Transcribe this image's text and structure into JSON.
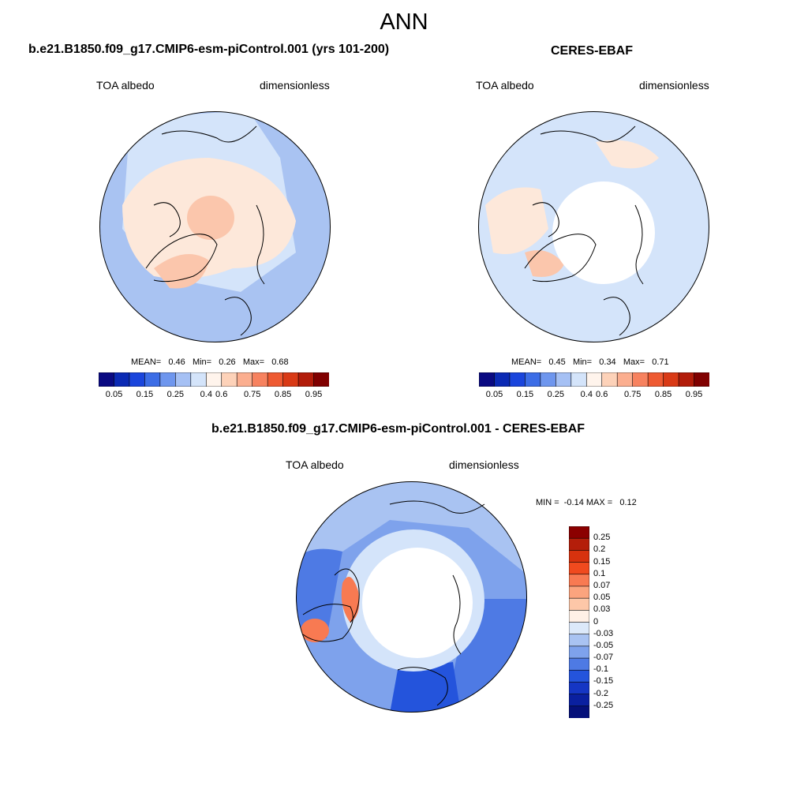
{
  "title": "ANN",
  "panels": [
    {
      "title": "b.e21.B1850.f09_g17.CMIP6-esm-piControl.001 (yrs 101-200)",
      "variable": "TOA albedo",
      "units": "dimensionless",
      "stats": "MEAN=   0.46   Min=   0.26   Max=   0.68"
    },
    {
      "title": "CERES-EBAF",
      "variable": "TOA albedo",
      "units": "dimensionless",
      "stats": "MEAN=   0.45   Min=   0.34   Max=   0.71"
    },
    {
      "title": "b.e21.B1850.f09_g17.CMIP6-esm-piControl.001 - CERES-EBAF",
      "variable": "TOA albedo",
      "units": "dimensionless",
      "stats": "MIN =  -0.14 MAX =   0.12"
    }
  ],
  "colorbar_abs": {
    "labels": [
      "0.05",
      "0.15",
      "0.25",
      "0.4",
      "0.6",
      "0.75",
      "0.85",
      "0.95"
    ],
    "colors": [
      "#0a0a82",
      "#0b2ab4",
      "#1a45dc",
      "#3c6de6",
      "#6e96ee",
      "#a5c0f4",
      "#d4e4fa",
      "#fff4ec",
      "#fdd2b9",
      "#fbae8f",
      "#f7825f",
      "#ee5a32",
      "#d93a16",
      "#b21c0a",
      "#800000"
    ]
  },
  "colorbar_diff": {
    "labels": [
      "0.25",
      "0.2",
      "0.15",
      "0.1",
      "0.07",
      "0.05",
      "0.03",
      "0",
      "-0.03",
      "-0.05",
      "-0.07",
      "-0.1",
      "-0.15",
      "-0.2",
      "-0.25"
    ],
    "colors": [
      "#8b0000",
      "#b41e0a",
      "#d7320e",
      "#f04a1e",
      "#f87a52",
      "#fba47e",
      "#fdc7a8",
      "#fff0e6",
      "#dce9fa",
      "#a9c3f2",
      "#7ea2ec",
      "#4e7ae4",
      "#2454dc",
      "#1536c4",
      "#0a20a0",
      "#05107a"
    ]
  },
  "map_colors": {
    "ocean_model": "#a9c3f2",
    "ocean_obs": "#d4e4fa",
    "land_warm": "#fde8da",
    "land_warmer": "#fbc6ac",
    "ice_white": "#ffffff",
    "diff_neg": "#4e7ae4",
    "diff_pos": "#f07a52"
  }
}
